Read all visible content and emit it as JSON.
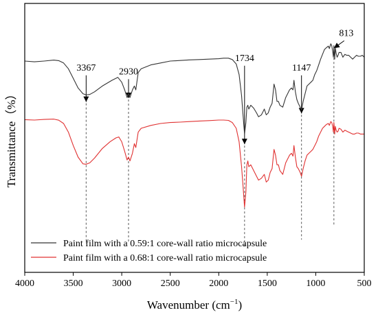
{
  "chart_data": {
    "type": "line",
    "title": "",
    "xlabel": "Wavenumber (cm",
    "xlabel_sup": "−1",
    "xlabel_close": ")",
    "ylabel": "Transmittance（%）",
    "xlim": [
      4000,
      500
    ],
    "x_reversed": true,
    "y_ticks_shown": false,
    "x_ticks": [
      4000,
      3500,
      3000,
      2500,
      2000,
      1500,
      1000,
      500
    ],
    "grid": false,
    "legend_position": "bottom-left",
    "series": [
      {
        "name": "Paint film with a 0.59:1 core-wall ratio microcapsule",
        "color": "#333333",
        "points": [
          [
            4000,
            70
          ],
          [
            3900,
            69.6
          ],
          [
            3800,
            70
          ],
          [
            3700,
            70.5
          ],
          [
            3650,
            70.2
          ],
          [
            3600,
            69
          ],
          [
            3550,
            66
          ],
          [
            3500,
            61
          ],
          [
            3450,
            56
          ],
          [
            3400,
            53
          ],
          [
            3367,
            52.4
          ],
          [
            3330,
            52.6
          ],
          [
            3280,
            54
          ],
          [
            3200,
            57
          ],
          [
            3100,
            60
          ],
          [
            3040,
            61.5
          ],
          [
            3000,
            59
          ],
          [
            2970,
            55
          ],
          [
            2945,
            51
          ],
          [
            2930,
            53
          ],
          [
            2915,
            51
          ],
          [
            2890,
            55
          ],
          [
            2870,
            57
          ],
          [
            2855,
            55
          ],
          [
            2830,
            64
          ],
          [
            2800,
            66
          ],
          [
            2700,
            68
          ],
          [
            2600,
            69
          ],
          [
            2500,
            70
          ],
          [
            2400,
            70.3
          ],
          [
            2300,
            70.6
          ],
          [
            2200,
            70.8
          ],
          [
            2100,
            71
          ],
          [
            2000,
            71.2
          ],
          [
            1950,
            71.5
          ],
          [
            1900,
            71.5
          ],
          [
            1860,
            70.8
          ],
          [
            1820,
            68.5
          ],
          [
            1790,
            63
          ],
          [
            1765,
            52
          ],
          [
            1750,
            42
          ],
          [
            1734,
            32
          ],
          [
            1720,
            38
          ],
          [
            1710,
            46
          ],
          [
            1700,
            47
          ],
          [
            1690,
            45
          ],
          [
            1670,
            47
          ],
          [
            1640,
            45.5
          ],
          [
            1610,
            43
          ],
          [
            1590,
            41
          ],
          [
            1560,
            42
          ],
          [
            1530,
            45
          ],
          [
            1510,
            42
          ],
          [
            1490,
            43
          ],
          [
            1470,
            46
          ],
          [
            1450,
            48
          ],
          [
            1430,
            58
          ],
          [
            1415,
            55
          ],
          [
            1400,
            49
          ],
          [
            1385,
            49
          ],
          [
            1370,
            47
          ],
          [
            1340,
            46
          ],
          [
            1310,
            51
          ],
          [
            1290,
            53
          ],
          [
            1270,
            55
          ],
          [
            1250,
            56
          ],
          [
            1235,
            55
          ],
          [
            1225,
            60
          ],
          [
            1210,
            54
          ],
          [
            1195,
            50
          ],
          [
            1180,
            48
          ],
          [
            1160,
            46
          ],
          [
            1147,
            44.5
          ],
          [
            1130,
            49
          ],
          [
            1110,
            53
          ],
          [
            1090,
            57
          ],
          [
            1070,
            58
          ],
          [
            1050,
            59
          ],
          [
            1030,
            60
          ],
          [
            1010,
            63
          ],
          [
            990,
            65
          ],
          [
            970,
            68
          ],
          [
            950,
            71
          ],
          [
            930,
            73.5
          ],
          [
            910,
            76
          ],
          [
            890,
            77
          ],
          [
            870,
            77.8
          ],
          [
            860,
            76.5
          ],
          [
            845,
            79
          ],
          [
            835,
            78
          ],
          [
            825,
            75
          ],
          [
            818,
            72
          ],
          [
            813,
            78
          ],
          [
            805,
            71
          ],
          [
            798,
            77
          ],
          [
            790,
            74
          ],
          [
            780,
            72
          ],
          [
            770,
            73
          ],
          [
            760,
            74.5
          ],
          [
            740,
            74.5
          ],
          [
            720,
            72
          ],
          [
            700,
            73.5
          ],
          [
            680,
            73
          ],
          [
            660,
            73
          ],
          [
            640,
            72
          ],
          [
            620,
            71
          ],
          [
            600,
            72
          ],
          [
            580,
            73
          ],
          [
            560,
            72.5
          ],
          [
            540,
            72.5
          ],
          [
            520,
            73
          ],
          [
            500,
            72
          ]
        ]
      },
      {
        "name": "Paint film with a 0.68:1 core-wall ratio microcapsule",
        "color": "#e03030",
        "points": [
          [
            4000,
            39.5
          ],
          [
            3900,
            39.3
          ],
          [
            3800,
            39.6
          ],
          [
            3700,
            39.8
          ],
          [
            3650,
            39.2
          ],
          [
            3600,
            37.5
          ],
          [
            3550,
            33
          ],
          [
            3500,
            26
          ],
          [
            3450,
            20
          ],
          [
            3400,
            16.5
          ],
          [
            3367,
            16.3
          ],
          [
            3330,
            17
          ],
          [
            3280,
            19.5
          ],
          [
            3200,
            24.5
          ],
          [
            3120,
            28
          ],
          [
            3060,
            30
          ],
          [
            3030,
            30.5
          ],
          [
            3000,
            28
          ],
          [
            2970,
            23
          ],
          [
            2945,
            18.5
          ],
          [
            2930,
            20
          ],
          [
            2915,
            18
          ],
          [
            2890,
            22
          ],
          [
            2870,
            27
          ],
          [
            2855,
            25
          ],
          [
            2830,
            33
          ],
          [
            2800,
            35
          ],
          [
            2700,
            36.5
          ],
          [
            2600,
            37.5
          ],
          [
            2500,
            38
          ],
          [
            2400,
            38.2
          ],
          [
            2300,
            38.5
          ],
          [
            2200,
            38.8
          ],
          [
            2100,
            39
          ],
          [
            2000,
            39.3
          ],
          [
            1950,
            39.3
          ],
          [
            1900,
            39.1
          ],
          [
            1860,
            38
          ],
          [
            1820,
            35
          ],
          [
            1790,
            28
          ],
          [
            1765,
            15
          ],
          [
            1750,
            5
          ],
          [
            1734,
            -6
          ],
          [
            1720,
            2
          ],
          [
            1710,
            16
          ],
          [
            1700,
            18
          ],
          [
            1690,
            15
          ],
          [
            1670,
            16
          ],
          [
            1640,
            13
          ],
          [
            1610,
            10
          ],
          [
            1590,
            8
          ],
          [
            1560,
            9
          ],
          [
            1530,
            11
          ],
          [
            1510,
            7
          ],
          [
            1490,
            8
          ],
          [
            1470,
            12
          ],
          [
            1450,
            14
          ],
          [
            1430,
            24
          ],
          [
            1415,
            21
          ],
          [
            1400,
            16
          ],
          [
            1385,
            16
          ],
          [
            1370,
            13
          ],
          [
            1340,
            11
          ],
          [
            1310,
            17
          ],
          [
            1290,
            19
          ],
          [
            1270,
            21
          ],
          [
            1250,
            22
          ],
          [
            1235,
            20.5
          ],
          [
            1225,
            26
          ],
          [
            1210,
            20
          ],
          [
            1195,
            15
          ],
          [
            1180,
            14
          ],
          [
            1160,
            12
          ],
          [
            1147,
            10
          ],
          [
            1130,
            14
          ],
          [
            1110,
            18
          ],
          [
            1090,
            21
          ],
          [
            1070,
            22
          ],
          [
            1050,
            23
          ],
          [
            1030,
            24
          ],
          [
            1010,
            26
          ],
          [
            990,
            28
          ],
          [
            970,
            31
          ],
          [
            950,
            33
          ],
          [
            930,
            35
          ],
          [
            910,
            36
          ],
          [
            890,
            37
          ],
          [
            870,
            37.5
          ],
          [
            860,
            36.5
          ],
          [
            845,
            38.5
          ],
          [
            835,
            38
          ],
          [
            825,
            36
          ],
          [
            818,
            33
          ],
          [
            813,
            38
          ],
          [
            805,
            32
          ],
          [
            798,
            36
          ],
          [
            790,
            34
          ],
          [
            780,
            33
          ],
          [
            770,
            33.5
          ],
          [
            760,
            35
          ],
          [
            740,
            34.5
          ],
          [
            720,
            33
          ],
          [
            700,
            34
          ],
          [
            680,
            33.5
          ],
          [
            660,
            33
          ],
          [
            640,
            32.5
          ],
          [
            620,
            32
          ],
          [
            600,
            32
          ],
          [
            580,
            32.5
          ],
          [
            560,
            32.5
          ],
          [
            540,
            32
          ],
          [
            520,
            32
          ],
          [
            500,
            32
          ]
        ]
      }
    ],
    "annotations": [
      {
        "label": "3367",
        "x": 3367,
        "line_y_top": 48,
        "line_y_bottom": -25,
        "text_y": 64
      },
      {
        "label": "2930",
        "x": 2930,
        "line_y_top": 50,
        "line_y_bottom": -25,
        "text_y": 62
      },
      {
        "label": "1734",
        "x": 1734,
        "line_y_top": 26,
        "line_y_bottom": -27,
        "text_y": 69
      },
      {
        "label": "1147",
        "x": 1147,
        "line_y_top": 42,
        "line_y_bottom": -23,
        "text_y": 64
      },
      {
        "label": "813",
        "x": 813,
        "line_y_top": 76,
        "line_y_bottom": -16,
        "text_y": 82
      }
    ]
  }
}
